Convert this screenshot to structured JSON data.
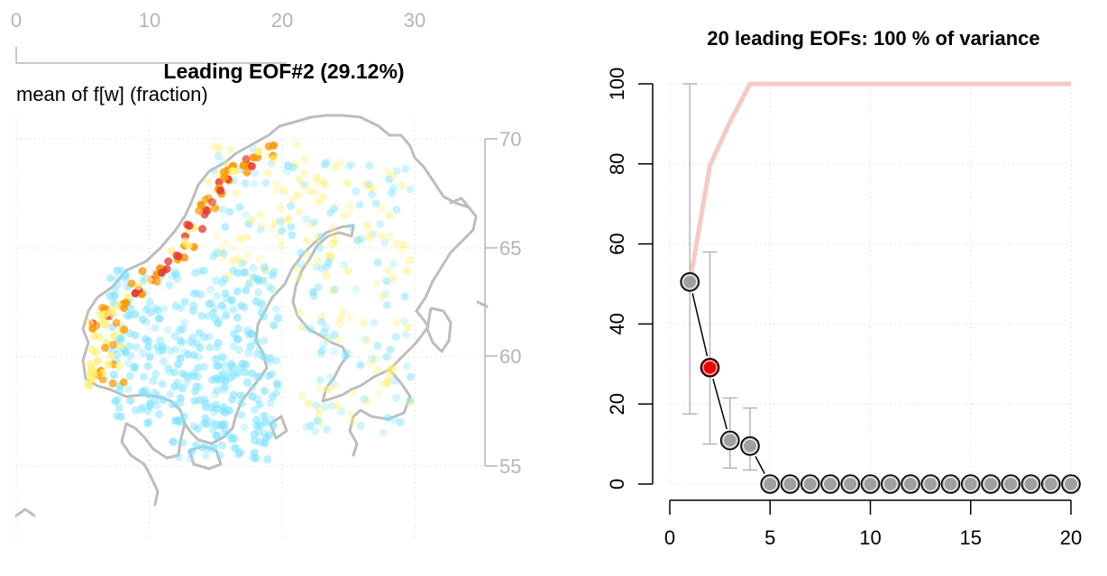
{
  "chart_data": [
    {
      "type": "scatter",
      "title": "Leading EOF#2 (29.12%)",
      "subtitle": "mean of f[w] (fraction)",
      "xlabel": "",
      "ylabel": "",
      "x_ticks": [
        "0",
        "10",
        "20",
        "30"
      ],
      "y_ticks": [
        "55",
        "60",
        "65",
        "70"
      ],
      "xlim": [
        0,
        30
      ],
      "ylim": [
        55,
        70
      ],
      "grid": true,
      "colors": {
        "coast": "#bdbdbd",
        "low": "#7fe3ff",
        "mid": "#fff176",
        "high": "#ff9800",
        "peak": "#e53935"
      }
    },
    {
      "type": "line",
      "title": "20 leading EOFs:  100 % of variance",
      "xlabel": "",
      "ylabel": "",
      "x_ticks": [
        "0",
        "5",
        "10",
        "15",
        "20"
      ],
      "y_ticks": [
        "0",
        "20",
        "40",
        "60",
        "80",
        "100"
      ],
      "xlim": [
        0,
        20
      ],
      "ylim": [
        0,
        100
      ],
      "grid": true,
      "x": [
        1,
        2,
        3,
        4,
        5,
        6,
        7,
        8,
        9,
        10,
        11,
        12,
        13,
        14,
        15,
        16,
        17,
        18,
        19,
        20
      ],
      "series": [
        {
          "values": [
            50.5,
            29.1,
            10.9,
            9.5,
            0,
            0,
            0,
            0,
            0,
            0,
            0,
            0,
            0,
            0,
            0,
            0,
            0,
            0,
            0,
            0
          ],
          "error_low": [
            17.5,
            10,
            4,
            3.5,
            null,
            null,
            null,
            null,
            null,
            null,
            null,
            null,
            null,
            null,
            null,
            null,
            null,
            null,
            null,
            null
          ],
          "error_high": [
            100,
            58,
            21.5,
            19,
            null,
            null,
            null,
            null,
            null,
            null,
            null,
            null,
            null,
            null,
            null,
            null,
            null,
            null,
            null,
            null
          ],
          "highlight_index": 2
        },
        {
          "values": [
            50.5,
            79.6,
            90.5,
            100,
            100,
            100,
            100,
            100,
            100,
            100,
            100,
            100,
            100,
            100,
            100,
            100,
            100,
            100,
            100,
            100
          ]
        }
      ],
      "colors": {
        "cumulative": "#f9c8c4",
        "points": "#a0a0a0",
        "highlight": "#ee0000",
        "errorbar": "#b5b5b5"
      }
    }
  ]
}
